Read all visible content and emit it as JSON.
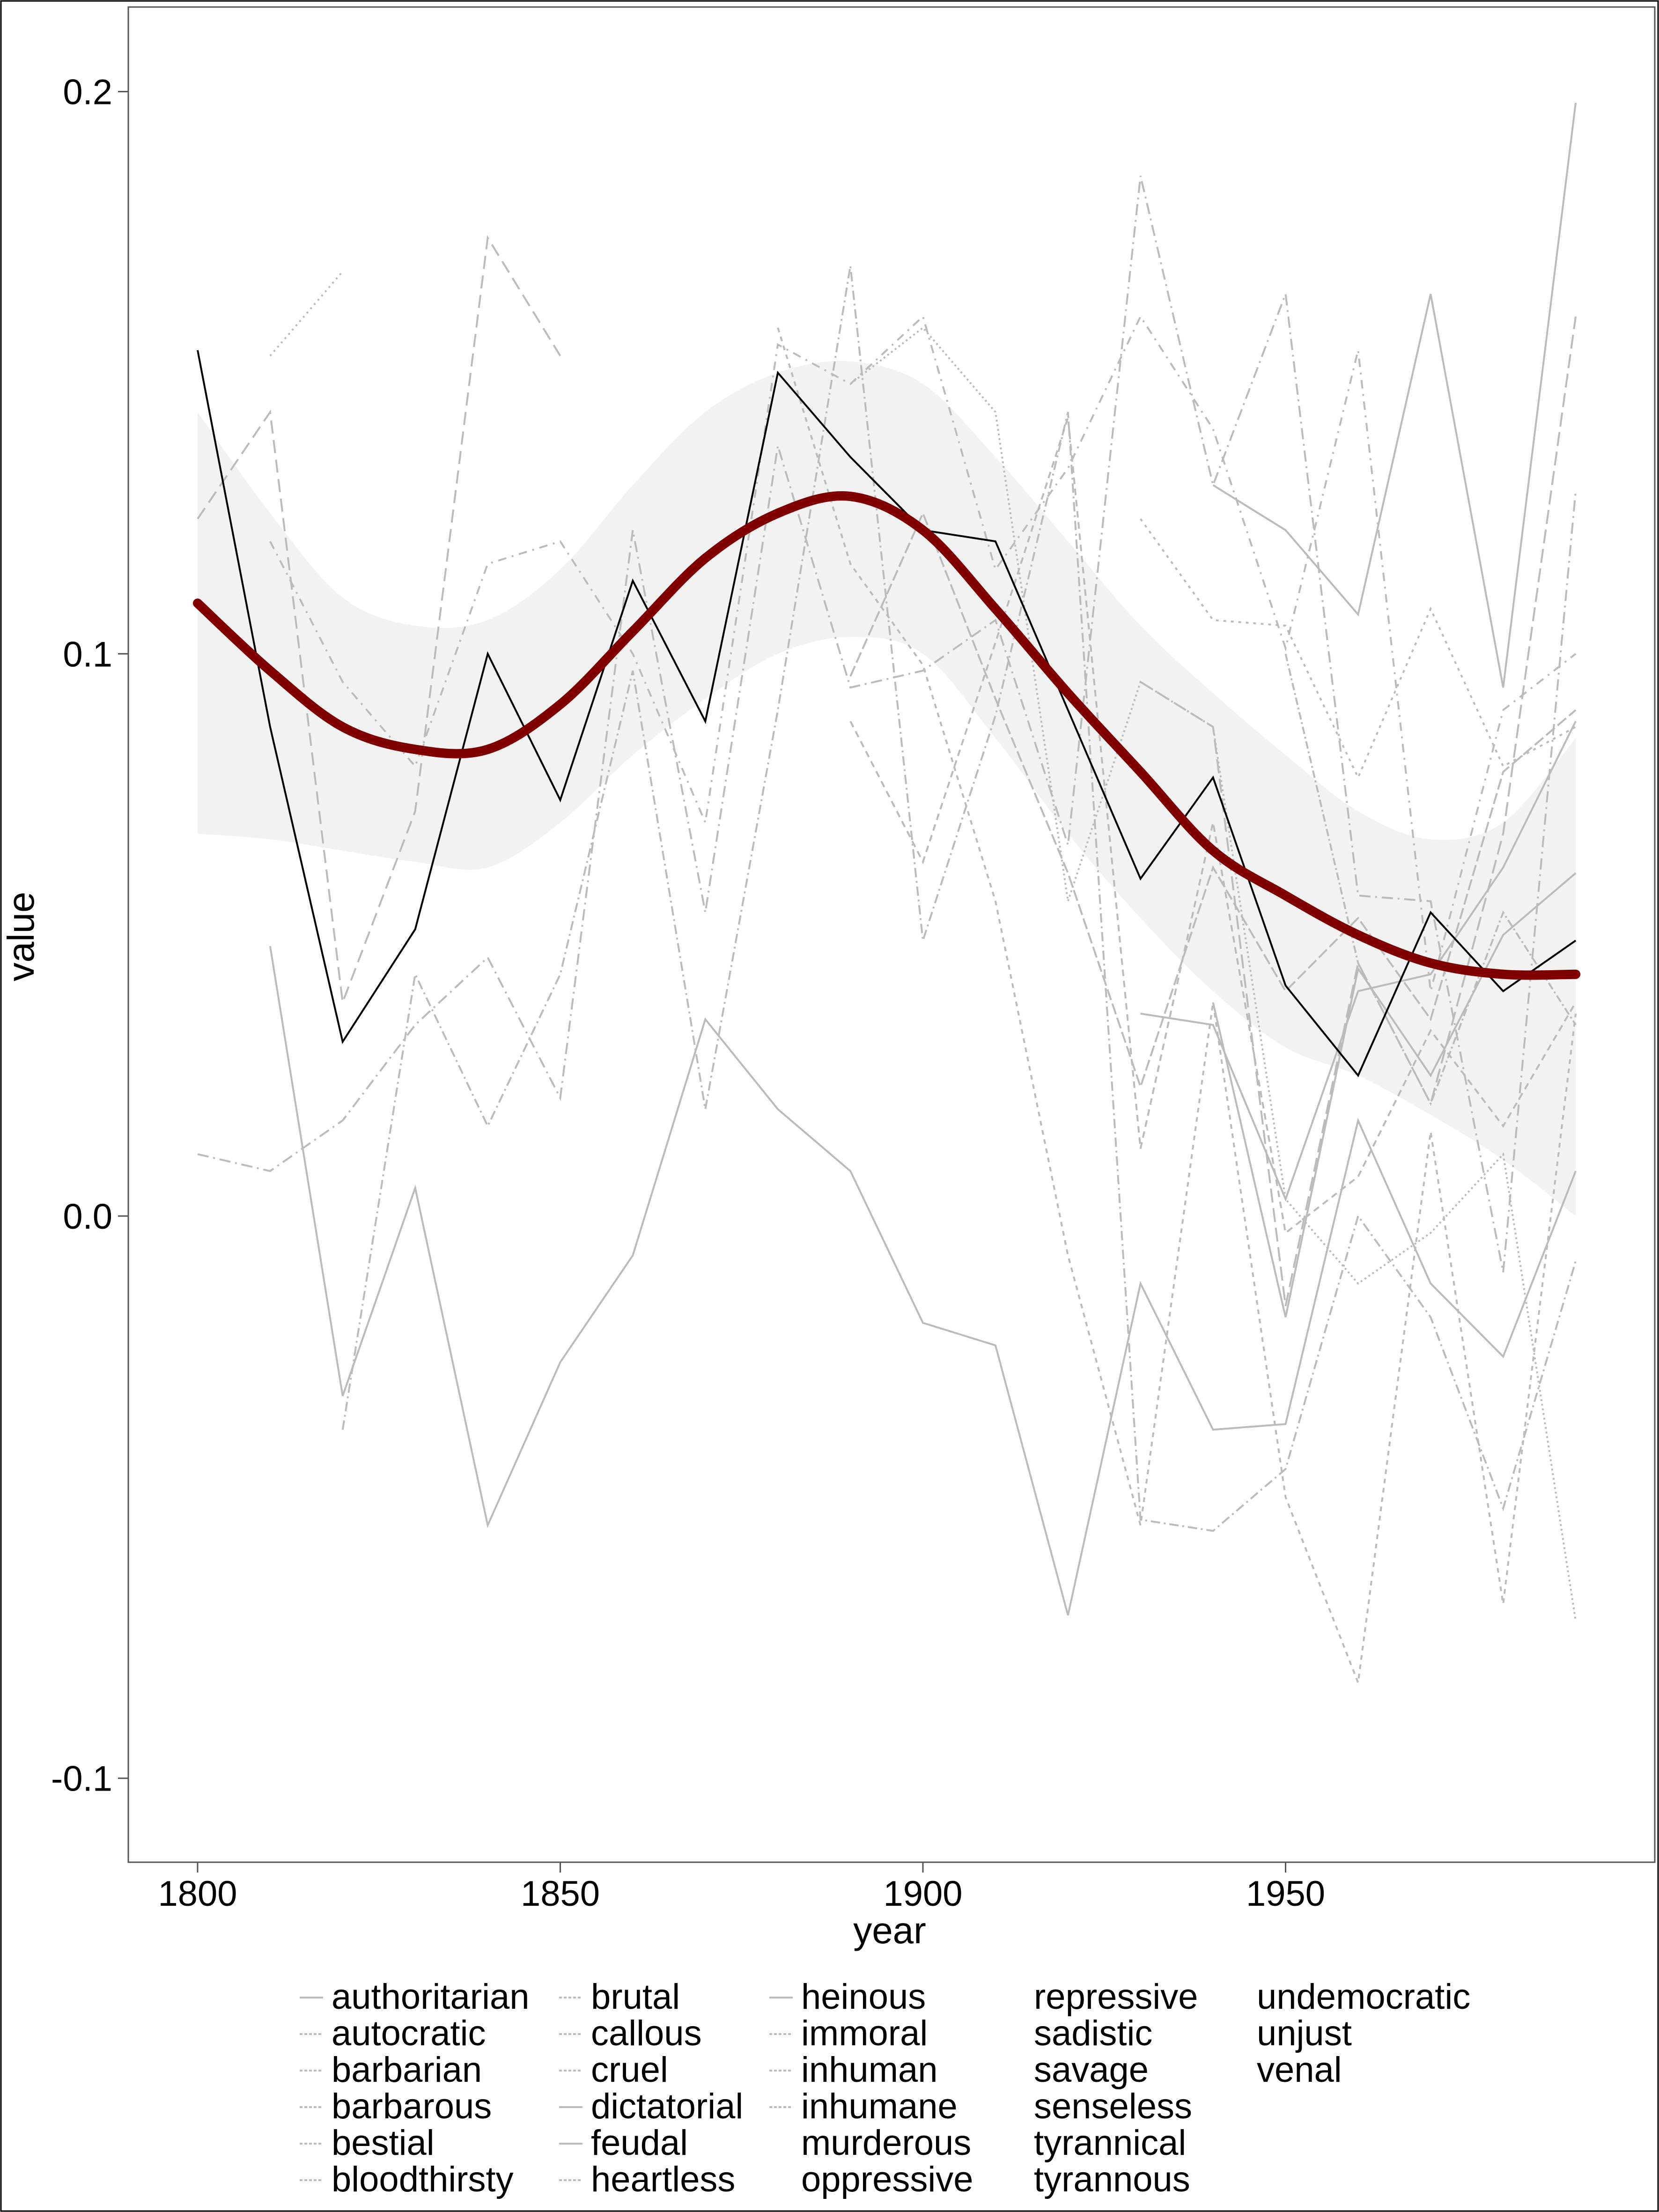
{
  "chart_data": {
    "type": "line",
    "xlabel": "year",
    "ylabel": "value",
    "xlim": [
      1790,
      1995
    ],
    "ylim": [
      -0.115,
      0.215
    ],
    "x_ticks": [
      1800,
      1850,
      1900,
      1950
    ],
    "x_tick_labels": [
      "1800",
      "1850",
      "1900",
      "1950"
    ],
    "y_ticks": [
      -0.1,
      0.0,
      0.1,
      0.2
    ],
    "y_tick_labels": [
      "-0.1",
      "0.0",
      "0.1",
      "0.2"
    ],
    "grid": false,
    "legend_placement": "bottom",
    "x": [
      1800,
      1810,
      1820,
      1830,
      1840,
      1850,
      1860,
      1870,
      1880,
      1890,
      1900,
      1910,
      1920,
      1930,
      1940,
      1950,
      1960,
      1970,
      1980,
      1990
    ],
    "highlight_series": {
      "color": "#000000",
      "values": [
        0.154,
        0.087,
        0.031,
        0.051,
        0.1,
        0.074,
        0.113,
        0.088,
        0.15,
        0.135,
        0.122,
        0.12,
        0.09,
        0.06,
        0.078,
        0.041,
        0.025,
        0.054,
        0.04,
        0.049
      ]
    },
    "smooth": {
      "color": "#800000",
      "values": [
        0.109,
        0.097,
        0.087,
        0.083,
        0.083,
        0.091,
        0.104,
        0.117,
        0.125,
        0.128,
        0.122,
        0.108,
        0.093,
        0.079,
        0.065,
        0.057,
        0.05,
        0.045,
        0.043,
        0.043
      ],
      "ci_upper": [
        0.143,
        0.125,
        0.11,
        0.105,
        0.106,
        0.115,
        0.13,
        0.143,
        0.15,
        0.152,
        0.148,
        0.135,
        0.12,
        0.105,
        0.093,
        0.082,
        0.072,
        0.067,
        0.07,
        0.085
      ],
      "ci_lower": [
        0.068,
        0.067,
        0.065,
        0.063,
        0.062,
        0.07,
        0.082,
        0.092,
        0.1,
        0.103,
        0.1,
        0.085,
        0.068,
        0.053,
        0.04,
        0.03,
        0.025,
        0.018,
        0.01,
        0.0
      ],
      "ci_color": "#f2f2f2"
    },
    "series_color": "#bbbbbb",
    "series": [
      {
        "name": "authoritarian",
        "values": [
          null,
          null,
          null,
          null,
          null,
          null,
          null,
          null,
          null,
          null,
          null,
          null,
          null,
          null,
          0.13,
          0.122,
          0.107,
          0.164,
          0.094,
          0.198
        ]
      },
      {
        "name": "autocratic",
        "values": [
          null,
          null,
          null,
          null,
          null,
          null,
          null,
          null,
          null,
          null,
          null,
          null,
          null,
          0.124,
          0.106,
          0.105,
          0.078,
          0.108,
          0.08,
          0.087
        ]
      },
      {
        "name": "barbarian",
        "values": [
          0.124,
          0.143,
          0.038,
          0.072,
          0.174,
          0.153,
          null,
          null,
          null,
          null,
          null,
          null,
          null,
          null,
          null,
          null,
          null,
          null,
          null,
          null
        ]
      },
      {
        "name": "barbarous",
        "values": [
          null,
          0.12,
          0.095,
          0.08,
          0.116,
          0.12,
          0.1,
          0.07,
          0.155,
          0.148,
          0.16,
          0.115,
          0.133,
          0.16,
          0.14,
          0.101,
          0.154,
          0.04,
          0.09,
          0.1
        ]
      },
      {
        "name": "bestial",
        "values": [
          null,
          0.153,
          0.168,
          null,
          null,
          null,
          null,
          null,
          null,
          null,
          null,
          null,
          null,
          null,
          null,
          null,
          null,
          null,
          null,
          null
        ]
      },
      {
        "name": "bloodthirsty",
        "values": [
          0.011,
          0.008,
          0.017,
          0.034,
          0.046,
          0.021,
          0.122,
          0.054,
          0.137,
          0.094,
          0.097,
          0.106,
          0.066,
          0.185,
          0.13,
          0.164,
          0.057,
          0.056,
          -0.01,
          0.129
        ]
      },
      {
        "name": "brutal",
        "values": [
          null,
          null,
          null,
          null,
          null,
          null,
          null,
          null,
          null,
          null,
          null,
          null,
          null,
          0.095,
          0.087,
          -0.016,
          0.045,
          0.02,
          0.068,
          0.16
        ]
      },
      {
        "name": "callous",
        "values": [
          null,
          null,
          null,
          null,
          null,
          null,
          null,
          null,
          null,
          0.148,
          0.158,
          0.143,
          0.056,
          0.095,
          0.087,
          0.003,
          -0.012,
          -0.003,
          0.011,
          -0.072
        ]
      },
      {
        "name": "cruel",
        "values": [
          null,
          null,
          null,
          null,
          null,
          null,
          null,
          null,
          null,
          0.088,
          0.063,
          0.102,
          0.142,
          0.012,
          0.07,
          -0.003,
          0.007,
          0.033,
          0.016,
          0.038
        ]
      },
      {
        "name": "dictatorial",
        "values": [
          null,
          null,
          null,
          null,
          null,
          null,
          null,
          null,
          null,
          null,
          null,
          null,
          null,
          0.036,
          0.034,
          0.003,
          0.04,
          0.043,
          0.062,
          0.088
        ]
      },
      {
        "name": "feudal",
        "values": [
          null,
          0.048,
          -0.032,
          0.005,
          -0.055,
          -0.026,
          -0.007,
          0.035,
          0.019,
          0.008,
          -0.019,
          -0.023,
          -0.071,
          -0.012,
          -0.038,
          -0.037,
          0.017,
          -0.012,
          -0.025,
          0.008
        ]
      },
      {
        "name": "heartless",
        "values": [
          null,
          null,
          -0.038,
          0.043,
          0.016,
          0.043,
          0.097,
          0.019,
          0.09,
          0.169,
          0.049,
          0.089,
          0.143,
          -0.054,
          -0.056,
          -0.045,
          0.0,
          -0.018,
          -0.052,
          -0.008
        ]
      },
      {
        "name": "heinous",
        "values": [
          null,
          null,
          null,
          null,
          null,
          null,
          null,
          null,
          null,
          null,
          null,
          null,
          null,
          null,
          0.038,
          -0.018,
          0.044,
          0.025,
          0.05,
          0.061
        ]
      },
      {
        "name": "immoral",
        "values": [
          null,
          null,
          null,
          null,
          null,
          null,
          null,
          null,
          0.158,
          0.116,
          0.098,
          0.056,
          -0.007,
          -0.055,
          0.038,
          -0.05,
          -0.083,
          0.015,
          -0.069,
          0.036
        ]
      },
      {
        "name": "inhuman",
        "values": [
          null,
          null,
          null,
          null,
          null,
          null,
          null,
          null,
          null,
          0.096,
          0.125,
          0.092,
          0.061,
          0.023,
          0.062,
          0.04,
          0.053,
          0.035,
          0.079,
          0.09
        ]
      },
      {
        "name": "inhumane",
        "values": [
          null,
          null,
          null,
          null,
          null,
          null,
          null,
          null,
          null,
          null,
          null,
          null,
          null,
          null,
          null,
          0.1,
          0.045,
          0.02,
          0.054,
          0.034
        ]
      },
      {
        "name": "murderous",
        "values": [
          null,
          null,
          null,
          null,
          null,
          null,
          null,
          null,
          null,
          null,
          null,
          null,
          null,
          null,
          null,
          null,
          null,
          null,
          null,
          null
        ]
      },
      {
        "name": "oppressive",
        "values": [
          null,
          null,
          null,
          null,
          null,
          null,
          null,
          null,
          null,
          null,
          null,
          null,
          null,
          null,
          null,
          null,
          null,
          null,
          null,
          null
        ]
      },
      {
        "name": "repressive",
        "values": [
          null,
          null,
          null,
          null,
          null,
          null,
          null,
          null,
          null,
          null,
          null,
          null,
          null,
          null,
          null,
          null,
          null,
          null,
          null,
          null
        ]
      },
      {
        "name": "sadistic",
        "values": [
          null,
          null,
          null,
          null,
          null,
          null,
          null,
          null,
          null,
          null,
          null,
          null,
          null,
          null,
          null,
          null,
          null,
          null,
          null,
          null
        ]
      },
      {
        "name": "savage",
        "values": [
          null,
          null,
          null,
          null,
          null,
          null,
          null,
          null,
          null,
          null,
          null,
          null,
          null,
          null,
          null,
          null,
          null,
          null,
          null,
          null
        ]
      },
      {
        "name": "senseless",
        "values": [
          null,
          null,
          null,
          null,
          null,
          null,
          null,
          null,
          null,
          null,
          null,
          null,
          null,
          null,
          null,
          null,
          null,
          null,
          null,
          null
        ]
      },
      {
        "name": "tyrannical",
        "values": [
          null,
          null,
          null,
          null,
          null,
          null,
          null,
          null,
          null,
          null,
          null,
          null,
          null,
          null,
          null,
          null,
          null,
          null,
          null,
          null
        ]
      },
      {
        "name": "tyrannous",
        "values": [
          null,
          null,
          null,
          null,
          null,
          null,
          null,
          null,
          null,
          null,
          null,
          null,
          null,
          null,
          null,
          null,
          null,
          null,
          null,
          null
        ]
      },
      {
        "name": "undemocratic",
        "values": [
          null,
          null,
          null,
          null,
          null,
          null,
          null,
          null,
          null,
          null,
          null,
          null,
          null,
          null,
          null,
          null,
          null,
          null,
          null,
          null
        ]
      },
      {
        "name": "unjust",
        "values": [
          null,
          null,
          null,
          null,
          null,
          null,
          null,
          null,
          null,
          null,
          null,
          null,
          null,
          null,
          null,
          null,
          null,
          null,
          null,
          null
        ]
      },
      {
        "name": "venal",
        "values": [
          null,
          null,
          null,
          null,
          null,
          null,
          null,
          null,
          null,
          null,
          null,
          null,
          null,
          null,
          null,
          null,
          null,
          null,
          null,
          null
        ]
      }
    ]
  }
}
